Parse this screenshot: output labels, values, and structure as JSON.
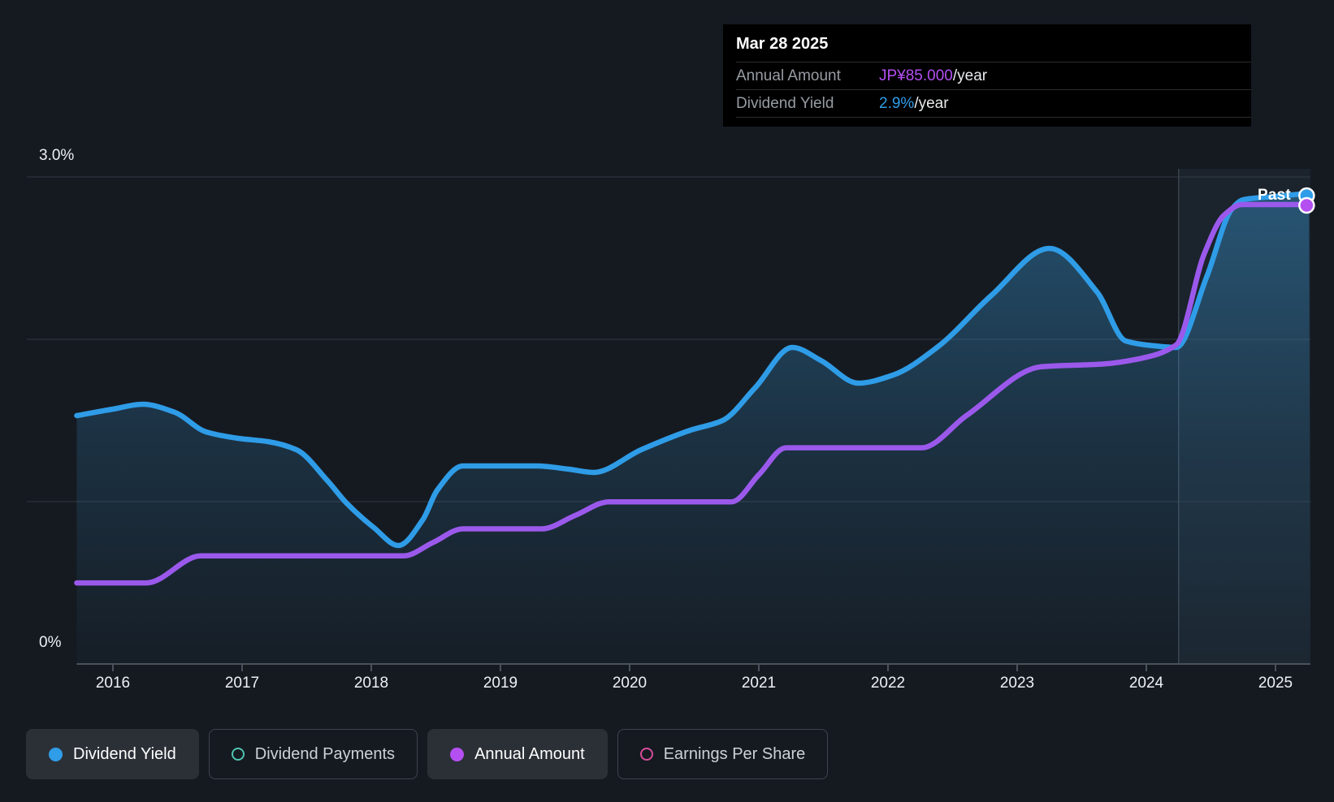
{
  "tooltip": {
    "date": "Mar 28 2025",
    "rows": [
      {
        "label": "Annual Amount",
        "value": "JP¥85.000",
        "suffix": "/year",
        "value_color": "#b44ff2"
      },
      {
        "label": "Dividend Yield",
        "value": "2.9%",
        "suffix": "/year",
        "value_color": "#2f9de8"
      }
    ]
  },
  "axis": {
    "y_top_label": "3.0%",
    "y_bottom_label": "0%",
    "years": [
      "2016",
      "2017",
      "2018",
      "2019",
      "2020",
      "2021",
      "2022",
      "2023",
      "2024",
      "2025"
    ]
  },
  "past_label": "Past",
  "legend": [
    {
      "label": "Dividend Yield",
      "color": "#2f9de8",
      "swatch": "filled",
      "active": true
    },
    {
      "label": "Dividend Payments",
      "color": "#4fc4ae",
      "swatch": "ring",
      "active": false
    },
    {
      "label": "Annual Amount",
      "color": "#b44ff2",
      "swatch": "filled",
      "active": true
    },
    {
      "label": "Earnings Per Share",
      "color": "#d74d9b",
      "swatch": "ring",
      "active": false
    }
  ],
  "colors": {
    "background": "#151a21",
    "gridline": "#313843",
    "axis_line": "#4a515b",
    "divider_line": "#3a424d",
    "past_band": "rgba(125,170,215,0.065)",
    "blue_line": "#2f9ce7",
    "purple_line": "#9b59ec",
    "blue_accent": "#2f9de8",
    "purple_accent": "#b44ff2",
    "marker_stroke": "#ffffff",
    "fill_top": "rgba(56,150,210,0.45)",
    "fill_mid": "rgba(56,150,210,0.18)",
    "fill_bottom": "rgba(56,150,210,0.03)"
  },
  "chart_data": {
    "type": "line",
    "x_ticks": [
      2016,
      2017,
      2018,
      2019,
      2020,
      2021,
      2022,
      2023,
      2024,
      2025
    ],
    "x_range": [
      2015.72,
      2025.27
    ],
    "y_percent_gridlines": [
      0,
      1,
      2,
      3
    ],
    "y_percent_range": [
      0,
      3.05
    ],
    "grid": true,
    "legend_position": "bottom",
    "past_divider_year": 2024.25,
    "end_markers": true,
    "series": [
      {
        "name": "Dividend Yield",
        "unit": "percent_per_year",
        "color": "#2f9ce7",
        "area": true,
        "points": [
          [
            2015.72,
            1.53
          ],
          [
            2016.0,
            1.57
          ],
          [
            2016.23,
            1.6
          ],
          [
            2016.48,
            1.55
          ],
          [
            2016.72,
            1.43
          ],
          [
            2016.97,
            1.39
          ],
          [
            2017.2,
            1.37
          ],
          [
            2017.42,
            1.32
          ],
          [
            2017.66,
            1.13
          ],
          [
            2017.81,
            0.99
          ],
          [
            2018.02,
            0.84
          ],
          [
            2018.21,
            0.73
          ],
          [
            2018.4,
            0.89
          ],
          [
            2018.51,
            1.07
          ],
          [
            2018.71,
            1.22
          ],
          [
            2019.28,
            1.22
          ],
          [
            2019.53,
            1.2
          ],
          [
            2019.72,
            1.18
          ],
          [
            2020.09,
            1.32
          ],
          [
            2020.47,
            1.44
          ],
          [
            2020.72,
            1.5
          ],
          [
            2020.97,
            1.7
          ],
          [
            2021.26,
            1.95
          ],
          [
            2021.48,
            1.87
          ],
          [
            2021.77,
            1.73
          ],
          [
            2022.04,
            1.78
          ],
          [
            2022.38,
            1.95
          ],
          [
            2022.8,
            2.27
          ],
          [
            2023.25,
            2.56
          ],
          [
            2023.62,
            2.29
          ],
          [
            2023.84,
            1.99
          ],
          [
            2024.06,
            1.96
          ],
          [
            2024.23,
            1.95
          ],
          [
            2024.47,
            2.39
          ],
          [
            2024.66,
            2.8
          ],
          [
            2024.75,
            2.86
          ],
          [
            2025.0,
            2.88
          ],
          [
            2025.26,
            2.9
          ]
        ]
      },
      {
        "name": "Annual Amount",
        "unit": "JPY_per_year",
        "color": "#9b59ec",
        "area": false,
        "points": [
          [
            2015.72,
            15
          ],
          [
            2016.26,
            15
          ],
          [
            2016.68,
            20
          ],
          [
            2018.25,
            20
          ],
          [
            2018.48,
            22.5
          ],
          [
            2018.71,
            25
          ],
          [
            2019.32,
            25
          ],
          [
            2019.58,
            27.5
          ],
          [
            2019.84,
            30
          ],
          [
            2020.79,
            30
          ],
          [
            2021.0,
            35
          ],
          [
            2021.21,
            40
          ],
          [
            2022.26,
            40
          ],
          [
            2022.61,
            46
          ],
          [
            2023.19,
            55
          ],
          [
            2023.67,
            55.5
          ],
          [
            2023.95,
            56.5
          ],
          [
            2024.23,
            59
          ],
          [
            2024.45,
            76
          ],
          [
            2024.6,
            83
          ],
          [
            2024.74,
            85
          ],
          [
            2025.26,
            85
          ]
        ]
      }
    ]
  }
}
